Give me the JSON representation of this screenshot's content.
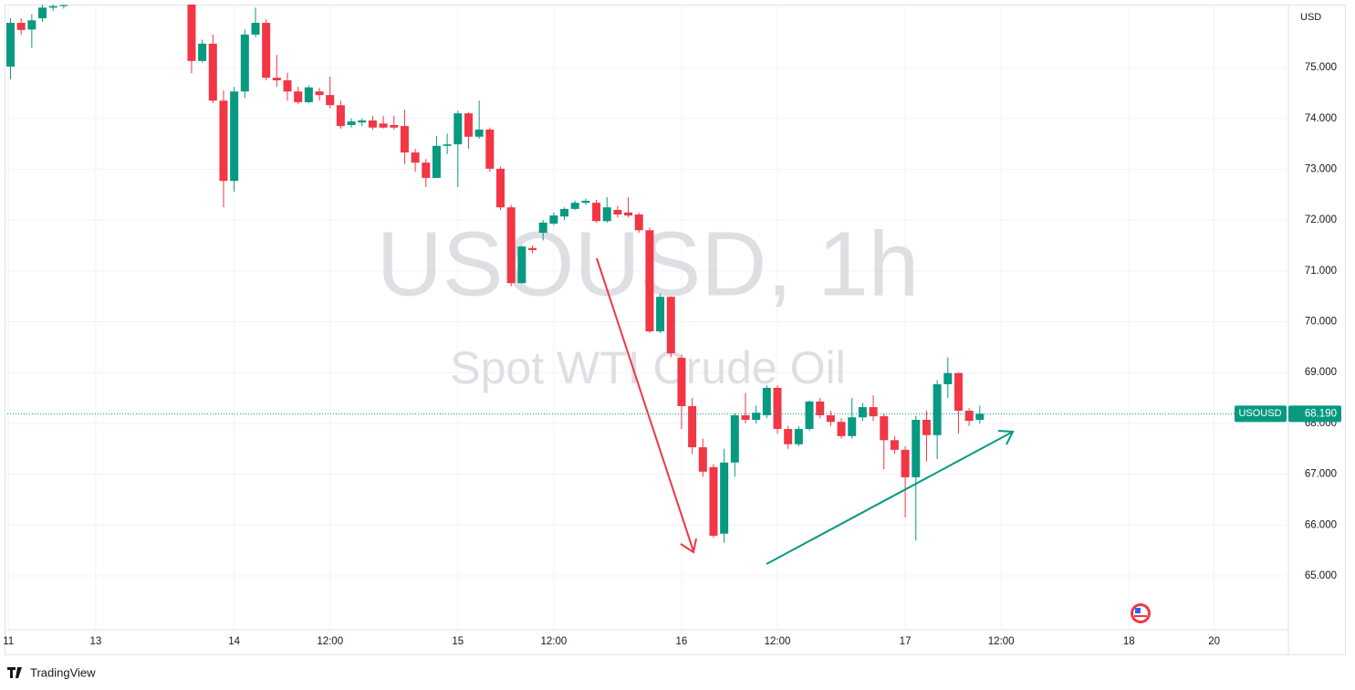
{
  "chart_data": {
    "type": "candlestick",
    "watermark_title": "USOUSD, 1h",
    "watermark_subtitle": "Spot WTI Crude Oil",
    "currency": "USD",
    "brand": "TradingView",
    "up_color": "#089981",
    "down_color": "#f23645",
    "grid": true,
    "xlim": [
      -0.3,
      119.8
    ],
    "xticks": [
      {
        "value": -0.2,
        "label": "11"
      },
      {
        "value": 8,
        "label": "13"
      },
      {
        "value": 21,
        "label": "14"
      },
      {
        "value": 30,
        "label": "12:00"
      },
      {
        "value": 42,
        "label": "15"
      },
      {
        "value": 51,
        "label": "12:00"
      },
      {
        "value": 63,
        "label": "16"
      },
      {
        "value": 72,
        "label": "12:00"
      },
      {
        "value": 84,
        "label": "17"
      },
      {
        "value": 93,
        "label": "12:00"
      },
      {
        "value": 105,
        "label": "18"
      },
      {
        "value": 113,
        "label": "20"
      }
    ],
    "ylim": [
      63.94,
      76.24
    ],
    "yticks": [
      {
        "value": 65,
        "label": "65.000"
      },
      {
        "value": 66,
        "label": "66.000"
      },
      {
        "value": 67,
        "label": "67.000"
      },
      {
        "value": 68,
        "label": "68.000"
      },
      {
        "value": 69,
        "label": "69.000"
      },
      {
        "value": 70,
        "label": "70.000"
      },
      {
        "value": 71,
        "label": "71.000"
      },
      {
        "value": 72,
        "label": "72.000"
      },
      {
        "value": 73,
        "label": "73.000"
      },
      {
        "value": 74,
        "label": "74.000"
      },
      {
        "value": 75,
        "label": "75.000"
      }
    ],
    "last_price_name": "USOUSD",
    "last_price": {
      "value": 68.19,
      "label": "68.190"
    },
    "x": [
      0,
      1,
      2,
      3,
      4,
      5,
      17,
      18,
      19,
      20,
      21,
      22,
      23,
      24,
      25,
      26,
      27,
      28,
      29,
      30,
      31,
      32,
      33,
      34,
      35,
      36,
      37,
      38,
      39,
      40,
      41,
      42,
      43,
      44,
      45,
      46,
      47,
      48,
      49,
      50,
      51,
      52,
      53,
      54,
      55,
      56,
      57,
      58,
      59,
      60,
      61,
      62,
      63,
      64,
      65,
      66,
      67,
      68,
      69,
      70,
      71,
      72,
      73,
      74,
      75,
      76,
      77,
      78,
      79,
      80,
      81,
      82,
      83,
      84,
      85,
      86,
      87,
      88,
      89,
      90,
      91
    ],
    "open": [
      75.02,
      75.88,
      75.75,
      75.97,
      76.18,
      76.21,
      76.24,
      75.13,
      75.47,
      74.35,
      72.77,
      74.53,
      75.65,
      75.88,
      74.8,
      74.75,
      74.53,
      74.32,
      74.53,
      74.46,
      74.26,
      73.87,
      73.92,
      73.96,
      73.9,
      73.87,
      73.85,
      73.33,
      73.13,
      72.83,
      73.46,
      73.49,
      74.1,
      73.64,
      73.78,
      73.01,
      72.25,
      70.76,
      71.45,
      71.75,
      71.93,
      72.07,
      72.22,
      72.34,
      72.34,
      71.98,
      72.2,
      72.15,
      72.11,
      71.8,
      69.81,
      70.49,
      69.29,
      68.34,
      67.53,
      67.14,
      65.83,
      67.23,
      68.16,
      68.07,
      68.16,
      68.7,
      67.89,
      67.59,
      67.89,
      68.43,
      68.16,
      68.03,
      67.75,
      68.12,
      68.32,
      68.14,
      67.67,
      67.48,
      66.94,
      68.07,
      67.77,
      68.77,
      68.99,
      68.25,
      68.07
    ],
    "high": [
      75.97,
      75.97,
      76.05,
      76.24,
      76.24,
      76.24,
      76.24,
      75.55,
      75.65,
      74.55,
      74.62,
      75.75,
      76.18,
      75.95,
      75.25,
      74.9,
      74.62,
      74.65,
      74.6,
      74.82,
      74.35,
      74.0,
      74.0,
      74.05,
      74.05,
      74.05,
      74.17,
      73.4,
      73.2,
      73.65,
      73.7,
      74.15,
      74.12,
      74.35,
      73.82,
      73.05,
      72.3,
      71.5,
      71.5,
      72.0,
      72.15,
      72.25,
      72.38,
      72.42,
      72.4,
      72.45,
      72.28,
      72.45,
      72.15,
      71.85,
      70.55,
      70.5,
      69.35,
      68.5,
      67.7,
      67.2,
      67.5,
      68.2,
      68.6,
      68.35,
      68.75,
      68.75,
      67.95,
      67.95,
      68.45,
      68.5,
      68.25,
      68.1,
      68.5,
      68.4,
      68.55,
      68.2,
      67.75,
      67.55,
      68.15,
      68.25,
      68.85,
      69.3,
      69.0,
      68.3,
      68.35
    ],
    "low": [
      74.77,
      75.65,
      75.39,
      75.9,
      76.12,
      76.16,
      74.89,
      75.1,
      74.3,
      72.25,
      72.56,
      74.4,
      75.6,
      74.75,
      74.62,
      74.35,
      74.28,
      74.3,
      74.35,
      74.2,
      73.8,
      73.82,
      73.85,
      73.78,
      73.8,
      73.78,
      73.1,
      72.95,
      72.65,
      72.83,
      73.3,
      72.65,
      73.4,
      73.6,
      72.95,
      72.2,
      70.7,
      70.75,
      71.35,
      71.6,
      71.9,
      72.0,
      72.2,
      72.3,
      71.95,
      71.95,
      72.05,
      72.05,
      71.75,
      69.78,
      69.78,
      69.3,
      67.89,
      67.4,
      66.95,
      65.75,
      65.65,
      66.95,
      68.0,
      68.0,
      68.1,
      67.8,
      67.5,
      67.55,
      67.85,
      68.1,
      67.95,
      67.7,
      67.7,
      68.05,
      68.05,
      67.1,
      67.4,
      66.15,
      65.7,
      67.25,
      67.3,
      68.5,
      67.8,
      67.95,
      68.0
    ],
    "close": [
      75.88,
      75.74,
      75.93,
      76.18,
      76.21,
      76.23,
      75.13,
      75.47,
      74.35,
      72.77,
      74.53,
      75.65,
      75.88,
      74.8,
      74.75,
      74.53,
      74.32,
      74.61,
      74.46,
      74.26,
      73.85,
      73.94,
      73.96,
      73.82,
      73.82,
      73.82,
      73.33,
      73.13,
      72.83,
      73.46,
      73.49,
      74.1,
      73.64,
      73.78,
      73.01,
      72.25,
      70.76,
      71.48,
      71.41,
      71.95,
      72.09,
      72.22,
      72.34,
      72.38,
      71.98,
      72.25,
      72.11,
      72.09,
      71.8,
      69.81,
      70.49,
      69.38,
      68.34,
      67.53,
      67.05,
      65.79,
      67.23,
      68.16,
      68.07,
      68.21,
      68.7,
      67.89,
      67.59,
      67.89,
      68.43,
      68.16,
      68.03,
      67.75,
      68.12,
      68.32,
      68.14,
      67.67,
      67.48,
      66.94,
      68.07,
      67.77,
      68.77,
      68.99,
      68.25,
      68.05,
      68.19
    ]
  }
}
